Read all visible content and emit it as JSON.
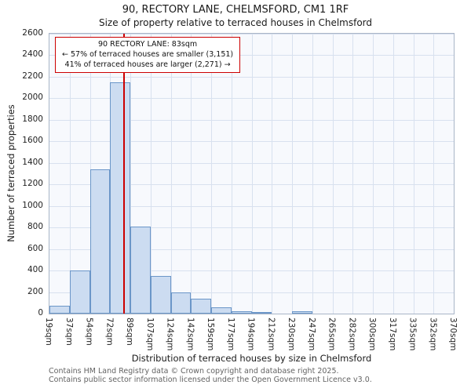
{
  "title": "90, RECTORY LANE, CHELMSFORD, CM1 1RF",
  "subtitle": "Size of property relative to terraced houses in Chelmsford",
  "annotation": {
    "line1": "90 RECTORY LANE: 83sqm",
    "line2": "← 57% of terraced houses are smaller (3,151)",
    "line3": "41% of terraced houses are larger (2,271) →"
  },
  "footer": {
    "line1": "Contains HM Land Registry data © Crown copyright and database right 2025.",
    "line2": "Contains public sector information licensed under the Open Government Licence v3.0."
  },
  "chart_data": {
    "type": "bar",
    "title": "90, RECTORY LANE, CHELMSFORD, CM1 1RF",
    "subtitle": "Size of property relative to terraced houses in Chelmsford",
    "xlabel": "Distribution of terraced houses by size in Chelmsford",
    "ylabel": "Number of terraced properties",
    "x_tick_labels": [
      "19sqm",
      "37sqm",
      "54sqm",
      "72sqm",
      "89sqm",
      "107sqm",
      "124sqm",
      "142sqm",
      "159sqm",
      "177sqm",
      "194sqm",
      "212sqm",
      "230sqm",
      "247sqm",
      "265sqm",
      "282sqm",
      "300sqm",
      "317sqm",
      "335sqm",
      "352sqm",
      "370sqm"
    ],
    "x_ticks_sqm": [
      19,
      37,
      54,
      72,
      89,
      107,
      124,
      142,
      159,
      177,
      194,
      212,
      230,
      247,
      265,
      282,
      300,
      317,
      335,
      352,
      370
    ],
    "bin_values": [
      75,
      400,
      1340,
      2150,
      810,
      350,
      200,
      135,
      55,
      20,
      10,
      0,
      20,
      0,
      0,
      0,
      0,
      0,
      0,
      0
    ],
    "y_ticks": [
      0,
      200,
      400,
      600,
      800,
      1000,
      1200,
      1400,
      1600,
      1800,
      2000,
      2200,
      2400,
      2600
    ],
    "ylim": [
      0,
      2600
    ],
    "marker_sqm": 83,
    "grid": true,
    "colors": {
      "bar_fill": "#ccdcf1",
      "bar_stroke": "#6b96c8",
      "marker": "#cc0000",
      "grid": "#d8e1ef",
      "annotation_border": "#cc0000"
    }
  }
}
